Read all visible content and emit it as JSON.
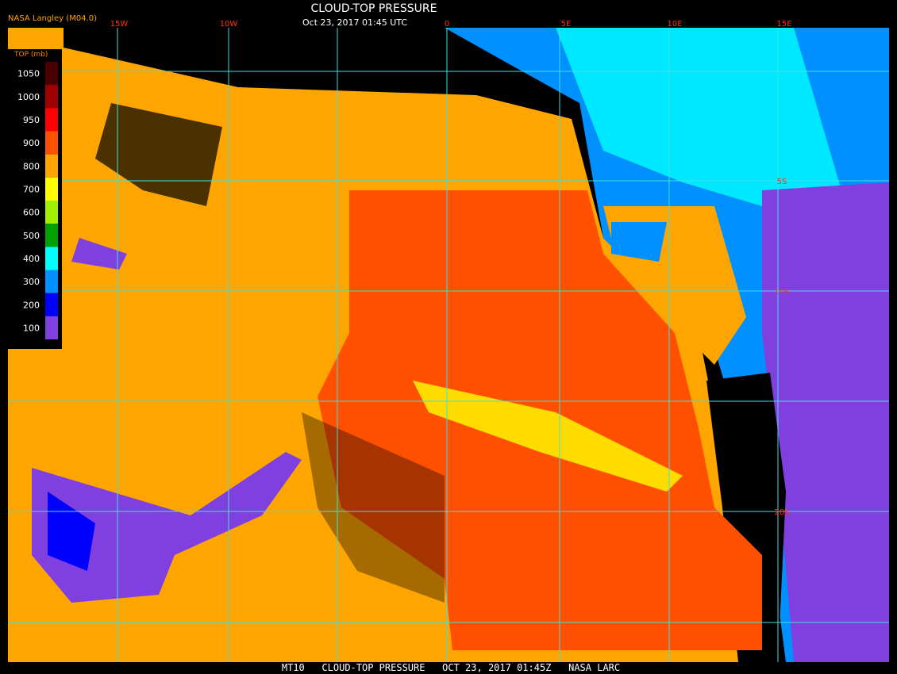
{
  "header": {
    "title": "CLOUD-TOP PRESSURE",
    "timestamp": "Oct 23, 2017 01:45 UTC",
    "credit": "NASA Langley (M04.0)"
  },
  "legend": {
    "title": "TOP (mb)",
    "items": [
      {
        "label": 1050,
        "color": "#4a0000"
      },
      {
        "label": 1000,
        "color": "#a00000"
      },
      {
        "label": 950,
        "color": "#ff0000"
      },
      {
        "label": 900,
        "color": "#ff5000"
      },
      {
        "label": 800,
        "color": "#ffa500"
      },
      {
        "label": 700,
        "color": "#ffff00"
      },
      {
        "label": 600,
        "color": "#a0f000"
      },
      {
        "label": 500,
        "color": "#00a000"
      },
      {
        "label": 400,
        "color": "#00ffff"
      },
      {
        "label": 300,
        "color": "#0090ff"
      },
      {
        "label": 200,
        "color": "#0000ff"
      },
      {
        "label": 100,
        "color": "#8040e0"
      }
    ]
  },
  "longitude_labels": [
    "15W",
    "10W",
    "0",
    "5E",
    "10E",
    "15E"
  ],
  "latitude_labels": [
    "5S",
    "10S",
    "20S"
  ],
  "footer": "MT10   CLOUD-TOP PRESSURE   OCT 23, 2017 01:45Z   NASA LARC"
}
